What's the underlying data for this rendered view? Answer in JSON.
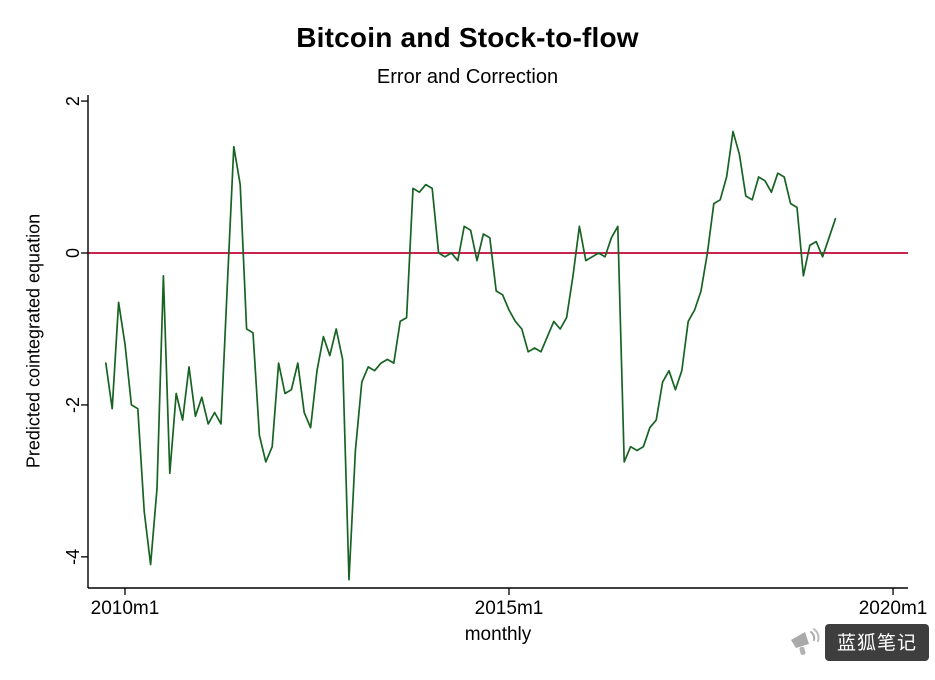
{
  "title": "Bitcoin and Stock-to-flow",
  "subtitle": "Error and Correction",
  "watermark": {
    "text": "蓝狐笔记",
    "icon": "megaphone-icon"
  },
  "chart_data": {
    "type": "line",
    "title": "Bitcoin and Stock-to-flow",
    "subtitle": "Error and Correction",
    "xlabel": "monthly",
    "ylabel": "Predicted cointegrated equation",
    "frequency": "monthly",
    "x_tick_labels": [
      "2010m1",
      "2015m1",
      "2020m1"
    ],
    "x_tick_months": [
      0,
      60,
      120
    ],
    "y_ticks": [
      2,
      0,
      -2,
      -4
    ],
    "ylim": [
      -4.41,
      2.08
    ],
    "xlim_months": [
      -5.78,
      122.34
    ],
    "grid": false,
    "legend": false,
    "background": "#ffffff",
    "axis_color": "#000000",
    "reference_line": {
      "y": 0,
      "color": "#c10534"
    },
    "series": [
      {
        "name": "Predicted cointegrated equation",
        "color": "#176323",
        "x_start": "2009m10",
        "start_month_offset": -3,
        "values": [
          -1.45,
          -2.05,
          -0.65,
          -1.2,
          -2.0,
          -2.05,
          -3.4,
          -4.1,
          -3.1,
          -0.3,
          -2.9,
          -1.85,
          -2.2,
          -1.5,
          -2.15,
          -1.9,
          -2.25,
          -2.1,
          -2.25,
          -0.4,
          1.4,
          0.9,
          -1.0,
          -1.05,
          -2.4,
          -2.75,
          -2.55,
          -1.45,
          -1.85,
          -1.8,
          -1.45,
          -2.1,
          -2.3,
          -1.55,
          -1.1,
          -1.35,
          -1.0,
          -1.4,
          -4.3,
          -2.6,
          -1.7,
          -1.5,
          -1.55,
          -1.45,
          -1.4,
          -1.45,
          -0.9,
          -0.85,
          0.85,
          0.8,
          0.9,
          0.85,
          0.0,
          -0.05,
          0.0,
          -0.1,
          0.35,
          0.3,
          -0.1,
          0.25,
          0.2,
          -0.5,
          -0.55,
          -0.75,
          -0.9,
          -1.0,
          -1.3,
          -1.25,
          -1.3,
          -1.1,
          -0.9,
          -1.0,
          -0.85,
          -0.3,
          0.35,
          -0.1,
          -0.05,
          0.0,
          -0.05,
          0.2,
          0.35,
          -2.75,
          -2.55,
          -2.6,
          -2.55,
          -2.3,
          -2.2,
          -1.7,
          -1.55,
          -1.8,
          -1.55,
          -0.9,
          -0.75,
          -0.5,
          0.0,
          0.65,
          0.7,
          1.0,
          1.6,
          1.3,
          0.75,
          0.7,
          1.0,
          0.95,
          0.8,
          1.05,
          1.0,
          0.65,
          0.6,
          -0.3,
          0.1,
          0.15,
          -0.05,
          0.2,
          0.45
        ]
      }
    ]
  }
}
